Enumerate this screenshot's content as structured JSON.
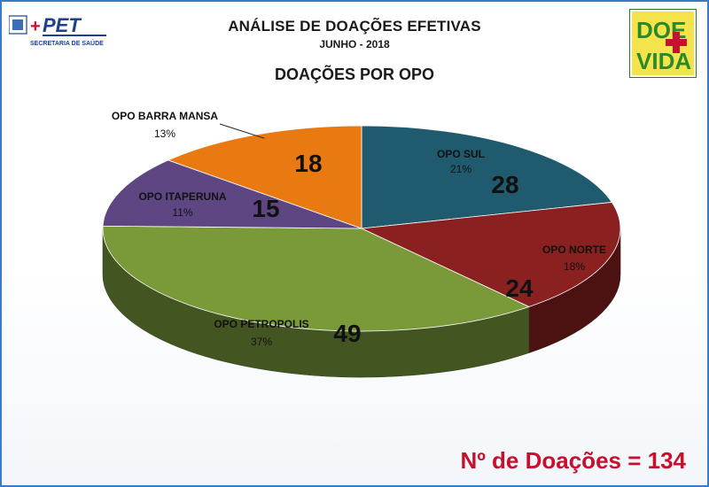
{
  "header": {
    "title": "ANÁLISE DE DOAÇÕES EFETIVAS",
    "subtitle": "JUNHO - 2018",
    "chart_title": "DOAÇÕES POR OPO"
  },
  "logos": {
    "left_name": "PET",
    "left_tagline": "SECRETARIA DE SAÚDE",
    "right_line1": "DOE",
    "right_line2": "VIDA"
  },
  "footer": {
    "total_text": "Nº de Doações = 134"
  },
  "colors": {
    "sul": "#1f5a6e",
    "norte": "#8b2020",
    "petropolis": "#7a9a3a",
    "itaperuna": "#5e4682",
    "barra_mansa": "#e97a12",
    "accent_red": "#c8102e"
  },
  "chart_data": {
    "type": "pie",
    "title": "DOAÇÕES POR OPO",
    "total": 134,
    "slices": [
      {
        "label": "OPO SUL",
        "value": 28,
        "percent": "21%"
      },
      {
        "label": "OPO NORTE",
        "value": 24,
        "percent": "18%"
      },
      {
        "label": "OPO PETROPOLIS",
        "value": 49,
        "percent": "37%"
      },
      {
        "label": "OPO ITAPERUNA",
        "value": 15,
        "percent": "11%"
      },
      {
        "label": "OPO BARRA MANSA",
        "value": 18,
        "percent": "13%"
      }
    ]
  }
}
